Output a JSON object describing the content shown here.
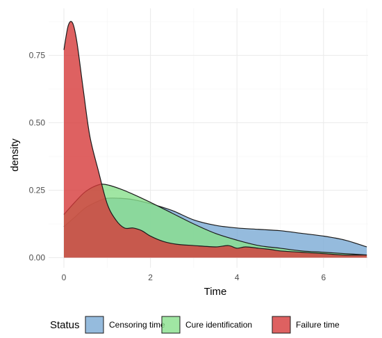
{
  "chart_data": {
    "type": "area",
    "subtype": "density",
    "title": "",
    "xlabel": "Time",
    "ylabel": "density",
    "xlim": [
      -0.35,
      7.0
    ],
    "ylim": [
      -0.02,
      0.92
    ],
    "x_ticks": [
      0,
      2,
      4,
      6
    ],
    "y_ticks": [
      0.0,
      0.25,
      0.5,
      0.75
    ],
    "x_tick_labels": [
      "0",
      "2",
      "4",
      "6"
    ],
    "y_tick_labels": [
      "0.00",
      "0.25",
      "0.50",
      "0.75"
    ],
    "grid": true,
    "legend": {
      "title": "Status",
      "position": "bottom",
      "entries": [
        "Censoring time",
        "Cure identification",
        "Failure time"
      ]
    },
    "series": [
      {
        "name": "Censoring time",
        "color": "#7aaad4",
        "x": [
          0,
          0.25,
          0.5,
          0.8,
          1.0,
          1.3,
          1.6,
          2.0,
          2.5,
          3.0,
          3.5,
          4.0,
          4.5,
          5.0,
          5.5,
          6.0,
          6.5,
          7.0
        ],
        "y": [
          0.115,
          0.15,
          0.185,
          0.21,
          0.22,
          0.22,
          0.215,
          0.2,
          0.175,
          0.14,
          0.12,
          0.11,
          0.105,
          0.1,
          0.09,
          0.08,
          0.065,
          0.04
        ]
      },
      {
        "name": "Cure identification",
        "color": "#88e08c",
        "x": [
          0,
          0.25,
          0.5,
          0.8,
          1.0,
          1.3,
          1.6,
          2.0,
          2.5,
          3.0,
          3.5,
          4.0,
          4.5,
          5.0,
          5.5,
          6.0,
          6.5,
          7.0
        ],
        "y": [
          0.16,
          0.205,
          0.245,
          0.27,
          0.27,
          0.255,
          0.235,
          0.205,
          0.165,
          0.125,
          0.09,
          0.065,
          0.045,
          0.035,
          0.025,
          0.02,
          0.015,
          0.01
        ]
      },
      {
        "name": "Failure time",
        "color": "#d63a3a",
        "x": [
          0,
          0.1,
          0.2,
          0.3,
          0.45,
          0.6,
          0.8,
          1.0,
          1.2,
          1.4,
          1.6,
          1.8,
          2.0,
          2.3,
          2.6,
          3.0,
          3.5,
          3.8,
          4.0,
          4.2,
          4.5,
          4.8,
          5.0,
          5.5,
          6.0,
          6.5,
          7.0
        ],
        "y": [
          0.77,
          0.86,
          0.87,
          0.8,
          0.62,
          0.45,
          0.32,
          0.2,
          0.14,
          0.11,
          0.11,
          0.1,
          0.08,
          0.06,
          0.05,
          0.045,
          0.04,
          0.045,
          0.035,
          0.04,
          0.035,
          0.03,
          0.025,
          0.02,
          0.015,
          0.01,
          0.01
        ]
      }
    ]
  }
}
